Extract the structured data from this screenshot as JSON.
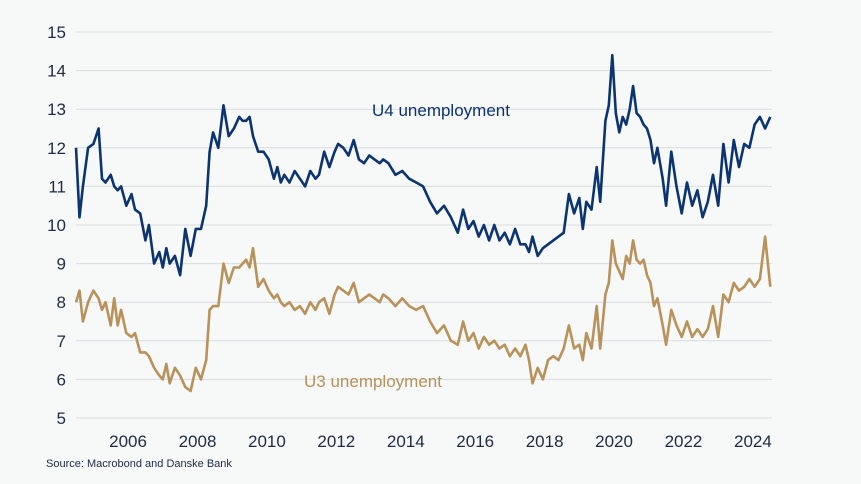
{
  "source": "Source: Macrobond and Danske Bank",
  "colors": {
    "u4": "#0b3470",
    "u3": "#b8925a",
    "grid": "#d9dcdf",
    "text": "#1f2a44"
  },
  "chart_data": {
    "type": "line",
    "title": "",
    "xlabel": "",
    "ylabel": "",
    "xlim": [
      2005.0,
      2025.05
    ],
    "ylim": [
      5,
      15
    ],
    "yticks": [
      "5",
      "6",
      "7",
      "8",
      "9",
      "10",
      "11",
      "12",
      "13",
      "14",
      "15"
    ],
    "xticks": [
      "2006",
      "2008",
      "2010",
      "2012",
      "2014",
      "2016",
      "2018",
      "2020",
      "2022",
      "2024"
    ],
    "grid": "horizontal",
    "series": [
      {
        "name": "U4 unemployment",
        "color": "#0b3470",
        "x": [
          2005.0,
          2005.1,
          2005.2,
          2005.35,
          2005.5,
          2005.65,
          2005.75,
          2005.85,
          2006.0,
          2006.1,
          2006.2,
          2006.3,
          2006.45,
          2006.6,
          2006.7,
          2006.85,
          2007.0,
          2007.1,
          2007.25,
          2007.4,
          2007.5,
          2007.6,
          2007.7,
          2007.85,
          2008.0,
          2008.15,
          2008.3,
          2008.45,
          2008.6,
          2008.75,
          2008.85,
          2008.95,
          2009.1,
          2009.25,
          2009.4,
          2009.55,
          2009.7,
          2009.8,
          2009.9,
          2010.0,
          2010.1,
          2010.25,
          2010.4,
          2010.55,
          2010.7,
          2010.8,
          2010.9,
          2011.0,
          2011.15,
          2011.3,
          2011.45,
          2011.6,
          2011.75,
          2011.9,
          2012.0,
          2012.15,
          2012.3,
          2012.45,
          2012.55,
          2012.7,
          2012.85,
          2013.0,
          2013.15,
          2013.3,
          2013.45,
          2013.6,
          2013.75,
          2013.85,
          2014.0,
          2014.2,
          2014.4,
          2014.6,
          2014.8,
          2015.0,
          2015.2,
          2015.4,
          2015.6,
          2015.8,
          2016.0,
          2016.15,
          2016.3,
          2016.45,
          2016.6,
          2016.75,
          2016.9,
          2017.05,
          2017.2,
          2017.35,
          2017.5,
          2017.65,
          2017.8,
          2017.95,
          2018.05,
          2018.15,
          2018.3,
          2018.45,
          2018.6,
          2018.75,
          2018.9,
          2019.05,
          2019.2,
          2019.35,
          2019.5,
          2019.6,
          2019.7,
          2019.85,
          2020.0,
          2020.1,
          2020.25,
          2020.35,
          2020.45,
          2020.55,
          2020.65,
          2020.75,
          2020.85,
          2020.95,
          2021.05,
          2021.15,
          2021.25,
          2021.35,
          2021.45,
          2021.55,
          2021.65,
          2021.75,
          2021.9,
          2022.0,
          2022.15,
          2022.3,
          2022.45,
          2022.6,
          2022.75,
          2022.9,
          2023.05,
          2023.2,
          2023.35,
          2023.5,
          2023.65,
          2023.8,
          2023.95,
          2024.1,
          2024.25,
          2024.4,
          2024.55,
          2024.7,
          2024.85,
          2025.0
        ],
        "y": [
          12.0,
          10.2,
          11.0,
          12.0,
          12.1,
          12.5,
          11.2,
          11.1,
          11.3,
          11.0,
          10.9,
          11.0,
          10.5,
          10.8,
          10.4,
          10.3,
          9.6,
          10.0,
          9.0,
          9.3,
          8.9,
          9.4,
          9.0,
          9.2,
          8.7,
          9.9,
          9.2,
          9.9,
          9.9,
          10.5,
          11.9,
          12.4,
          12.0,
          13.1,
          12.3,
          12.5,
          12.8,
          12.7,
          12.7,
          12.8,
          12.3,
          11.9,
          11.9,
          11.7,
          11.2,
          11.5,
          11.1,
          11.3,
          11.1,
          11.4,
          11.2,
          11.0,
          11.4,
          11.2,
          11.3,
          11.9,
          11.5,
          11.9,
          12.1,
          12.0,
          11.8,
          12.2,
          11.7,
          11.6,
          11.8,
          11.7,
          11.6,
          11.7,
          11.6,
          11.3,
          11.4,
          11.2,
          11.1,
          11.0,
          10.6,
          10.3,
          10.5,
          10.2,
          9.8,
          10.4,
          9.9,
          10.1,
          9.7,
          10.0,
          9.6,
          10.0,
          9.6,
          9.8,
          9.5,
          9.9,
          9.5,
          9.5,
          9.3,
          9.7,
          9.2,
          9.4,
          9.5,
          9.6,
          9.7,
          9.8,
          10.8,
          10.3,
          10.7,
          9.9,
          10.6,
          10.4,
          11.5,
          10.6,
          12.7,
          13.1,
          14.4,
          12.9,
          12.4,
          12.8,
          12.6,
          13.0,
          13.6,
          12.9,
          12.8,
          12.6,
          12.5,
          12.2,
          11.6,
          12.0,
          11.2,
          10.5,
          11.9,
          11.0,
          10.3,
          11.1,
          10.5,
          10.9,
          10.2,
          10.6,
          11.3,
          10.5,
          12.1,
          11.1,
          12.2,
          11.5,
          12.1,
          12.0,
          12.6,
          12.8,
          12.5,
          12.8
        ]
      },
      {
        "name": "U3 unemployment",
        "color": "#b8925a",
        "x": [
          2005.0,
          2005.1,
          2005.2,
          2005.35,
          2005.5,
          2005.65,
          2005.75,
          2005.85,
          2006.0,
          2006.1,
          2006.2,
          2006.3,
          2006.45,
          2006.6,
          2006.7,
          2006.85,
          2007.0,
          2007.1,
          2007.25,
          2007.4,
          2007.5,
          2007.6,
          2007.7,
          2007.85,
          2008.0,
          2008.15,
          2008.3,
          2008.45,
          2008.6,
          2008.75,
          2008.85,
          2008.95,
          2009.1,
          2009.25,
          2009.4,
          2009.55,
          2009.7,
          2009.8,
          2009.9,
          2010.0,
          2010.1,
          2010.25,
          2010.4,
          2010.55,
          2010.7,
          2010.8,
          2010.9,
          2011.0,
          2011.15,
          2011.3,
          2011.45,
          2011.6,
          2011.75,
          2011.9,
          2012.0,
          2012.15,
          2012.3,
          2012.45,
          2012.55,
          2012.7,
          2012.85,
          2013.0,
          2013.15,
          2013.3,
          2013.45,
          2013.6,
          2013.75,
          2013.85,
          2014.0,
          2014.2,
          2014.4,
          2014.6,
          2014.8,
          2015.0,
          2015.2,
          2015.4,
          2015.6,
          2015.8,
          2016.0,
          2016.15,
          2016.3,
          2016.45,
          2016.6,
          2016.75,
          2016.9,
          2017.05,
          2017.2,
          2017.35,
          2017.5,
          2017.65,
          2017.8,
          2017.95,
          2018.05,
          2018.15,
          2018.3,
          2018.45,
          2018.6,
          2018.75,
          2018.9,
          2019.05,
          2019.2,
          2019.35,
          2019.5,
          2019.6,
          2019.7,
          2019.85,
          2020.0,
          2020.1,
          2020.25,
          2020.35,
          2020.45,
          2020.55,
          2020.65,
          2020.75,
          2020.85,
          2020.95,
          2021.05,
          2021.15,
          2021.25,
          2021.35,
          2021.45,
          2021.55,
          2021.65,
          2021.75,
          2021.9,
          2022.0,
          2022.15,
          2022.3,
          2022.45,
          2022.6,
          2022.75,
          2022.9,
          2023.05,
          2023.2,
          2023.35,
          2023.5,
          2023.65,
          2023.8,
          2023.95,
          2024.1,
          2024.25,
          2024.4,
          2024.55,
          2024.7,
          2024.85,
          2025.0
        ],
        "y": [
          8.0,
          8.3,
          7.5,
          8.0,
          8.3,
          8.1,
          7.8,
          8.0,
          7.4,
          8.1,
          7.4,
          7.8,
          7.2,
          7.1,
          7.2,
          6.7,
          6.7,
          6.6,
          6.3,
          6.1,
          6.0,
          6.4,
          5.9,
          6.3,
          6.1,
          5.8,
          5.7,
          6.3,
          6.0,
          6.5,
          7.8,
          7.9,
          7.9,
          9.0,
          8.5,
          8.9,
          8.9,
          9.0,
          9.1,
          8.9,
          9.4,
          8.4,
          8.6,
          8.3,
          8.1,
          8.2,
          8.0,
          7.9,
          8.0,
          7.8,
          7.9,
          7.7,
          8.0,
          7.8,
          8.0,
          8.1,
          7.7,
          8.2,
          8.4,
          8.3,
          8.2,
          8.5,
          8.0,
          8.1,
          8.2,
          8.1,
          8.0,
          8.2,
          8.1,
          7.9,
          8.1,
          7.9,
          7.8,
          7.9,
          7.5,
          7.2,
          7.4,
          7.0,
          6.9,
          7.5,
          7.0,
          7.2,
          6.8,
          7.1,
          6.9,
          7.0,
          6.8,
          6.9,
          6.6,
          6.8,
          6.6,
          6.9,
          6.5,
          5.9,
          6.3,
          6.0,
          6.5,
          6.6,
          6.5,
          6.8,
          7.4,
          6.8,
          6.9,
          6.5,
          7.2,
          6.8,
          7.9,
          6.8,
          8.2,
          8.5,
          9.6,
          9.0,
          8.8,
          8.6,
          9.2,
          9.0,
          9.6,
          9.1,
          9.0,
          9.1,
          8.7,
          8.5,
          7.9,
          8.1,
          7.4,
          6.9,
          7.8,
          7.4,
          7.1,
          7.5,
          7.1,
          7.3,
          7.1,
          7.3,
          7.9,
          7.1,
          8.2,
          8.0,
          8.5,
          8.3,
          8.4,
          8.6,
          8.4,
          8.6,
          9.7,
          8.4
        ]
      }
    ]
  }
}
